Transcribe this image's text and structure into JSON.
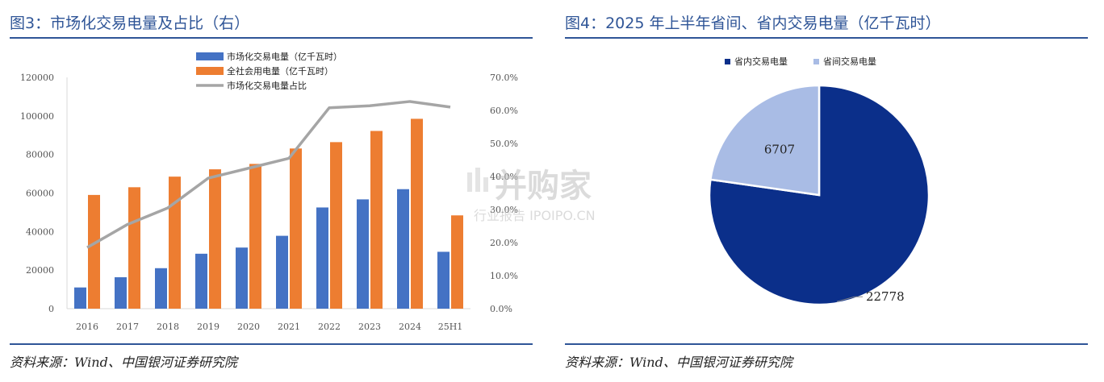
{
  "left": {
    "title": "图3：市场化交易电量及占比（右）",
    "source": "资料来源：Wind、中国银河证券研究院"
  },
  "right": {
    "title": "图4：2025 年上半年省间、省内交易电量（亿千瓦时）",
    "source": "资料来源：Wind、中国银河证券研究院"
  },
  "watermark": {
    "main": "并购家",
    "sub": "行业报告 IPOIPO.CN"
  },
  "colors": {
    "title_blue": "#2f5597",
    "bar_blue": "#4472c4",
    "bar_orange": "#ed7d31",
    "line_gray": "#a5a5a5",
    "pie_dark": "#0b2f8a",
    "pie_light": "#a9bce5"
  },
  "chart_data": [
    {
      "type": "bar",
      "categories": [
        "2016",
        "2017",
        "2018",
        "2019",
        "2020",
        "2021",
        "2022",
        "2023",
        "2024",
        "25H1"
      ],
      "series": [
        {
          "name": "市场化交易电量（亿千瓦时）",
          "type": "bar",
          "axis": "left",
          "values": [
            11000,
            16300,
            21000,
            28500,
            31700,
            37800,
            52500,
            56700,
            62000,
            29500
          ]
        },
        {
          "name": "全社会用电量（亿千瓦时）",
          "type": "bar",
          "axis": "left",
          "values": [
            59000,
            63000,
            68500,
            72300,
            75100,
            83100,
            86400,
            92200,
            98500,
            48400
          ]
        },
        {
          "name": "市场化交易电量占比",
          "type": "line",
          "axis": "right",
          "values": [
            18.5,
            25.5,
            30.5,
            39.5,
            42.5,
            45.5,
            60.8,
            61.4,
            62.7,
            61.0
          ]
        }
      ],
      "ylim": [
        0,
        120000
      ],
      "yticks": [
        "0",
        "20000",
        "40000",
        "60000",
        "80000",
        "100000",
        "120000"
      ],
      "y2lim": [
        0,
        70
      ],
      "y2ticks": [
        "0.0%",
        "10.0%",
        "20.0%",
        "30.0%",
        "40.0%",
        "50.0%",
        "60.0%",
        "70.0%"
      ],
      "legend_position": "top-center",
      "grid": false
    },
    {
      "type": "pie",
      "series": [
        {
          "name": "省内交易电量",
          "value": 22778,
          "label": "22778"
        },
        {
          "name": "省间交易电量",
          "value": 6707,
          "label": "6707"
        }
      ],
      "legend_position": "top-center"
    }
  ]
}
